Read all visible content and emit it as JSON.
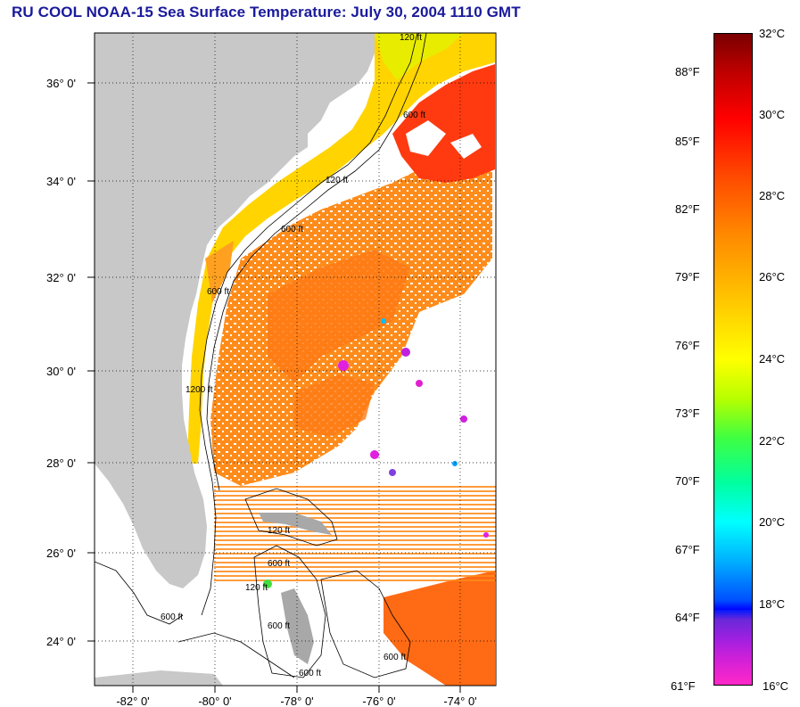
{
  "title": "RU COOL  NOAA-15  Sea Surface Temperature:  July 30, 2004 1110 GMT",
  "map": {
    "lat_labels": [
      "36° 0'",
      "34° 0'",
      "32° 0'",
      "30° 0'",
      "28° 0'",
      "26° 0'",
      "24° 0'"
    ],
    "lon_labels": [
      "-82° 0'",
      "-80° 0'",
      "-78° 0'",
      "-76° 0'",
      "-74° 0'"
    ],
    "contour_labels": [
      "120 ft",
      "600 ft",
      "120 ft",
      "600 ft",
      "600 ft",
      "1200 ft",
      "120 ft",
      "600 ft",
      "600 ft",
      "120 ft",
      "600 ft",
      "600 ft",
      "600 ft"
    ],
    "colors": {
      "land": "#c8c8c8",
      "ocean_nodata": "#ffffff",
      "warm": "#ff8c1a",
      "hot": "#ff3010",
      "shelf": "#ffd700"
    }
  },
  "colorbar": {
    "fahrenheit": [
      "88°F",
      "85°F",
      "82°F",
      "79°F",
      "76°F",
      "73°F",
      "70°F",
      "67°F",
      "64°F",
      "61°F"
    ],
    "celsius": [
      "32°C",
      "30°C",
      "28°C",
      "26°C",
      "24°C",
      "22°C",
      "20°C",
      "18°C",
      "16°C"
    ]
  }
}
